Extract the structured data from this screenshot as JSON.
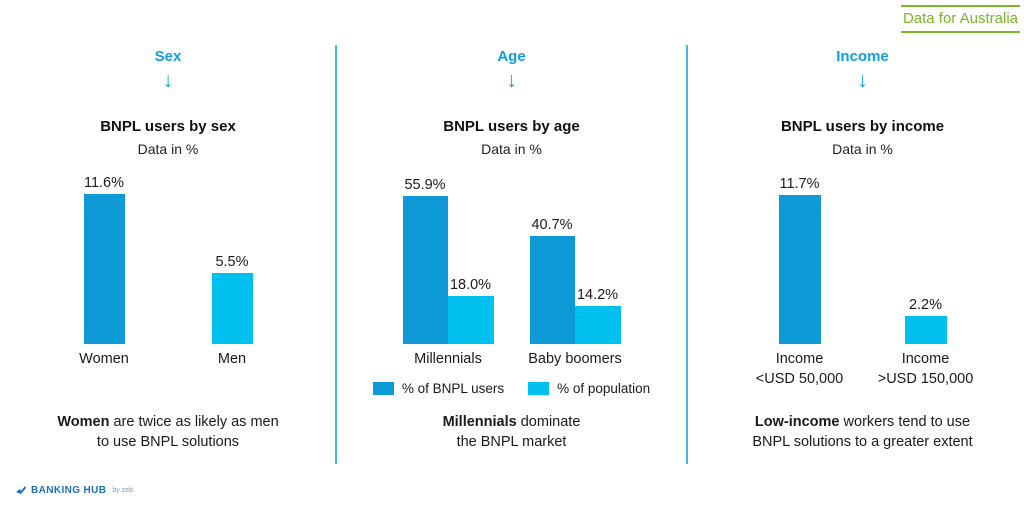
{
  "badge": {
    "label": "Data for Australia"
  },
  "panels": [
    {
      "category": "Sex",
      "arrow": "↓",
      "title": "BNPL users by sex",
      "subtitle": "Data in %",
      "bars": [
        {
          "value": 11.6,
          "display": "11.6%",
          "name": "Women"
        },
        {
          "value": 5.5,
          "display": "5.5%",
          "name": "Men"
        }
      ],
      "note": {
        "bold": "Women",
        "line1_rest": " are twice as likely as men",
        "line2": "to use BNPL solutions"
      }
    },
    {
      "category": "Age",
      "arrow": "↓",
      "title": "BNPL users by age",
      "subtitle": "Data in %",
      "groups": [
        {
          "name": "Millennials",
          "users": {
            "value": 55.9,
            "display": "55.9%"
          },
          "population": {
            "value": 18.0,
            "display": "18.0%"
          }
        },
        {
          "name": "Baby boomers",
          "users": {
            "value": 40.7,
            "display": "40.7%"
          },
          "population": {
            "value": 14.2,
            "display": "14.2%"
          }
        }
      ],
      "legend": [
        {
          "label": "% of BNPL users"
        },
        {
          "label": "% of population"
        }
      ],
      "note": {
        "bold": "Millennials",
        "line1_rest": " dominate",
        "line2": "the BNPL market"
      }
    },
    {
      "category": "Income",
      "arrow": "↓",
      "title": "BNPL users by income",
      "subtitle": "Data in %",
      "bars": [
        {
          "value": 11.7,
          "display": "11.7%",
          "name_line1": "Income",
          "name_line2": "<USD 50,000"
        },
        {
          "value": 2.2,
          "display": "2.2%",
          "name_line1": "Income",
          "name_line2": ">USD 150,000"
        }
      ],
      "note": {
        "bold": "Low-income",
        "line1_rest": " workers tend to use",
        "line2": "BNPL solutions to a greater extent"
      }
    }
  ],
  "footer": {
    "brand_word1": "BANKING",
    "brand_word2": "HUB",
    "byline": "by zeb"
  },
  "colors": {
    "bar_dark": "#0d9ad7",
    "bar_light": "#00c0f0",
    "accent_blue": "#0f9fe0",
    "divider_blue": "#41b5ea",
    "badge_green": "#7ab829",
    "logo_blue": "#1d71b8"
  },
  "chart_data": [
    {
      "type": "bar",
      "title": "BNPL users by sex",
      "subtitle": "Data in %",
      "categories": [
        "Women",
        "Men"
      ],
      "values": [
        11.6,
        5.5
      ],
      "value_labels": [
        "11.6%",
        "5.5%"
      ],
      "unit": "%",
      "bar_colors": [
        "#0d9ad7",
        "#00c0f0"
      ],
      "ylim": [
        0,
        12
      ],
      "grid": false
    },
    {
      "type": "bar",
      "title": "BNPL users by age",
      "subtitle": "Data in %",
      "categories": [
        "Millennials",
        "Baby boomers"
      ],
      "series": [
        {
          "name": "% of BNPL users",
          "values": [
            55.9,
            40.7
          ],
          "color": "#0d9ad7"
        },
        {
          "name": "% of population",
          "values": [
            18.0,
            14.2
          ],
          "color": "#00c0f0"
        }
      ],
      "value_labels": [
        [
          "55.9%",
          "40.7%"
        ],
        [
          "18.0%",
          "14.2%"
        ]
      ],
      "unit": "%",
      "legend_position": "bottom",
      "ylim": [
        0,
        56
      ],
      "grid": false
    },
    {
      "type": "bar",
      "title": "BNPL users by income",
      "subtitle": "Data in %",
      "categories": [
        "Income <USD 50,000",
        "Income >USD 150,000"
      ],
      "values": [
        11.7,
        2.2
      ],
      "value_labels": [
        "11.7%",
        "2.2%"
      ],
      "unit": "%",
      "bar_colors": [
        "#0d9ad7",
        "#00c0f0"
      ],
      "ylim": [
        0,
        12
      ],
      "grid": false
    }
  ]
}
